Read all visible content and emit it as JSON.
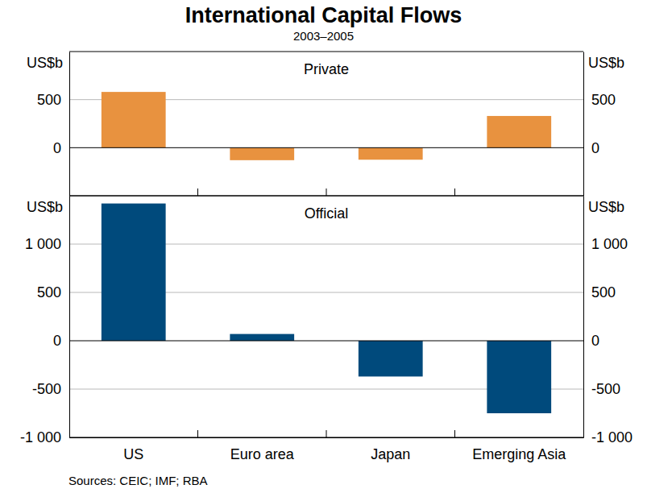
{
  "title": "International Capital Flows",
  "subtitle": "2003–2005",
  "source": "Sources: CEIC; IMF; RBA",
  "chart_data": [
    {
      "type": "bar",
      "title": "Private",
      "y_label": "US$b",
      "categories": [
        "US",
        "Euro area",
        "Japan",
        "Emerging Asia"
      ],
      "values": [
        580,
        -130,
        -125,
        330
      ],
      "color": "#e8923f",
      "ylim": [
        -500,
        1000
      ],
      "yticks": [
        0,
        500
      ],
      "grid": true,
      "tick_labels": "y"
    },
    {
      "type": "bar",
      "title": "Official",
      "y_label": "US$b",
      "categories": [
        "US",
        "Euro area",
        "Japan",
        "Emerging Asia"
      ],
      "values": [
        1420,
        70,
        -370,
        -750
      ],
      "color": "#004a7c",
      "ylim": [
        -1000,
        1500
      ],
      "yticks": [
        {
          "value": -1000,
          "label": "-1 000"
        },
        -500,
        0,
        500,
        {
          "value": 1000,
          "label": "1 000"
        }
      ],
      "grid": true
    }
  ]
}
